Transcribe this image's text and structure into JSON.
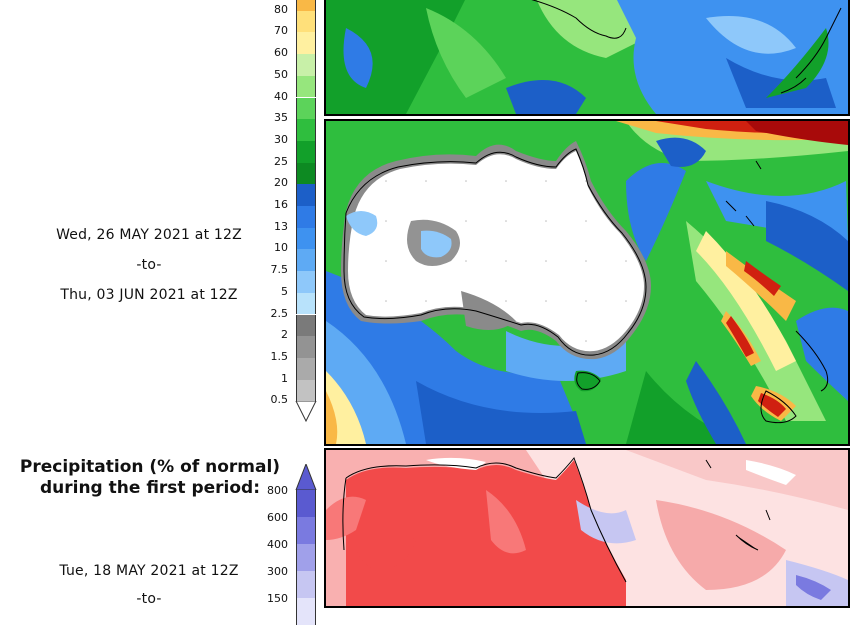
{
  "top_legend": {
    "ticks": [
      "80",
      "70",
      "60",
      "50",
      "40",
      "35",
      "30",
      "25",
      "20",
      "16",
      "13",
      "10",
      "7.5",
      "5",
      "2.5",
      "2",
      "1.5",
      "1",
      "0.5"
    ],
    "colors": [
      "#f9b846",
      "#ffe07a",
      "#fff0a0",
      "#c8f0a8",
      "#96e67d",
      "#5cd35a",
      "#2fbe3e",
      "#12a02a",
      "#0d8a22",
      "#1c5fc8",
      "#2f7be6",
      "#3e92f0",
      "#5eaaf4",
      "#8ec8fa",
      "#b8e2fb",
      "#7a7a7a",
      "#939393",
      "#aaaaaa",
      "#c2c2c2"
    ]
  },
  "period_2": {
    "start": "Wed, 26 MAY 2021 at 12Z",
    "connector": "-to-",
    "end": "Thu, 03 JUN 2021 at 12Z"
  },
  "anomaly": {
    "heading_line1": "Precipitation (% of normal)",
    "heading_line2": "during the first period:",
    "ticks": [
      "800",
      "600",
      "400",
      "300",
      "150"
    ],
    "colors": [
      "#5a5ad0",
      "#7a7ae0",
      "#a0a0ea",
      "#c6c6f2",
      "#e4e4fa"
    ],
    "period_1_start": "Tue, 18 MAY 2021 at 12Z",
    "period_1_connector": "-to-"
  }
}
